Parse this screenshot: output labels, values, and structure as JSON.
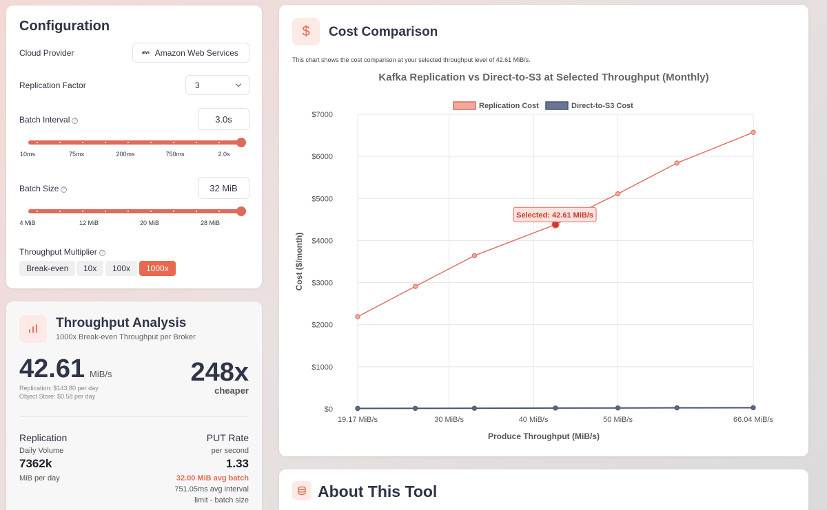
{
  "config": {
    "title": "Configuration",
    "cloud_provider_label": "Cloud Provider",
    "cloud_provider_logo": "aws",
    "cloud_provider_value": "Amazon Web Services",
    "replication_label": "Replication Factor",
    "replication_value": "3",
    "batch_interval_label": "Batch Interval",
    "batch_interval_value": "3.0s",
    "batch_interval_ticks": [
      "10ms",
      "75ms",
      "200ms",
      "750ms",
      "2.0s"
    ],
    "batch_size_label": "Batch Size",
    "batch_size_value": "32 MiB",
    "batch_size_ticks": [
      "4 MiB",
      "12 MiB",
      "20 MiB",
      "28 MiB"
    ],
    "multiplier_label": "Throughput Multiplier",
    "multipliers": [
      "Break-even",
      "10x",
      "100x",
      "1000x"
    ],
    "active_multiplier": "1000x",
    "info_glyph": "?"
  },
  "throughput": {
    "title": "Throughput Analysis",
    "subtitle": "1000x Break-even Throughput per Broker",
    "value": "42.61",
    "unit": "MiB/s",
    "replication_cost": "Replication: $143.80 per day",
    "object_store_cost": "Object Store: $0.58 per day",
    "savings": "248x",
    "savings_label": "cheaper",
    "replication_heading": "Replication",
    "daily_volume_label": "Daily Volume",
    "daily_volume_value": "7362k",
    "daily_volume_unit": "MiB per day",
    "put_heading": "PUT Rate",
    "put_sub": "per second",
    "put_value": "1.33",
    "avg_batch": "32.00 MiB avg batch",
    "avg_interval": "751.05ms avg interval",
    "limit": "limit - batch size"
  },
  "cost": {
    "title": "Cost Comparison",
    "icon_glyph": "$",
    "description": "This chart shows the cost comparison at your selected throughput level of 42.61 MiB/s."
  },
  "about": {
    "title": "About This Tool"
  },
  "colors": {
    "accent": "#e8694f",
    "replication": "#e06c5c",
    "direct": "#4a5573"
  },
  "chart_data": {
    "type": "line",
    "title": "Kafka Replication vs Direct-to-S3 at Selected Throughput (Monthly)",
    "xlabel": "Produce Throughput (MiB/s)",
    "ylabel": "Cost ($/month)",
    "xlim": [
      19.17,
      66.04
    ],
    "ylim": [
      0,
      7000
    ],
    "x_ticks": [
      19.17,
      30,
      40,
      50,
      66.04
    ],
    "x_tick_labels": [
      "19.17 MiB/s",
      "30 MiB/s",
      "40 MiB/s",
      "50 MiB/s",
      "66.04 MiB/s"
    ],
    "y_ticks": [
      0,
      1000,
      2000,
      3000,
      4000,
      5000,
      6000,
      7000
    ],
    "y_tick_labels": [
      "$0",
      "$1000",
      "$2000",
      "$3000",
      "$4000",
      "$5000",
      "$6000",
      "$7000"
    ],
    "grid": true,
    "legend_position": "top-center",
    "x": [
      19.17,
      26.0,
      33.0,
      42.61,
      50.0,
      57.0,
      66.04
    ],
    "series": [
      {
        "name": "Replication Cost",
        "values": [
          2190,
          2910,
          3640,
          4380,
          5110,
          5840,
          6570
        ]
      },
      {
        "name": "Direct-to-S3 Cost",
        "values": [
          10,
          12,
          14,
          18,
          21,
          24,
          26
        ]
      }
    ],
    "annotation": {
      "x": 42.61,
      "y": 4380,
      "text": "Selected: 42.61 MiB/s"
    }
  }
}
